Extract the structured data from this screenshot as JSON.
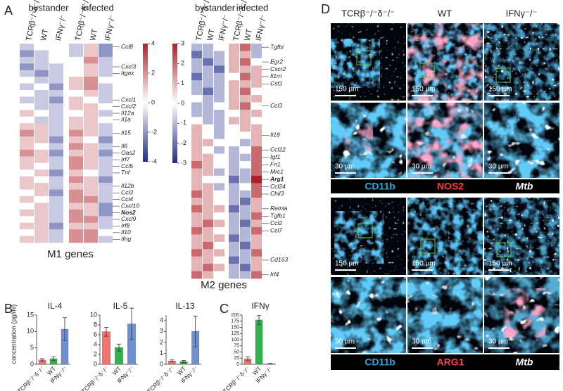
{
  "panel_labels": [
    "A",
    "B",
    "C",
    "D"
  ],
  "panel_a": {
    "group_labels": [
      "bystander",
      "infected"
    ],
    "column_labels": [
      "TCRβ⁻/⁻δ⁻/⁻",
      "WT",
      "IFNγ⁻/⁻"
    ]
  },
  "panel_b": {
    "y_label": "concentration (pg/ml)"
  },
  "panel_d": {
    "column_labels": [
      "TCRβ⁻/⁻δ⁻/⁻",
      "WT",
      "IFNγ⁻/⁻"
    ],
    "scale_bars": [
      "150 µm",
      "30 µm"
    ],
    "stains": [
      [
        "CD11b",
        "NOS2",
        "Mtb"
      ],
      [
        "CD11b",
        "ARG1",
        "Mtb"
      ]
    ]
  },
  "chart_data": [
    {
      "type": "heatmap",
      "title": "M1 genes",
      "colors": [
        "#1f2a8a",
        "#ffffff",
        "#b11f26"
      ],
      "zlim": [
        -4,
        4
      ],
      "zticks": [
        4,
        2,
        0,
        -2,
        -4
      ],
      "bold_rows": [
        25
      ],
      "rows": [
        "Ccl8",
        null,
        null,
        "Cxcl3",
        "Itgax",
        null,
        null,
        null,
        "Cxcl1",
        "Cxcl2",
        "Il12a",
        "Il1a",
        null,
        "Il15",
        null,
        "Il6",
        "Oas2",
        "Irf7",
        "Ccl5",
        "Tnf",
        null,
        "Il12b",
        "Ccl3",
        "Ccl4",
        "Cxcl10",
        "Nos2",
        "Cxcl9",
        "Irf8",
        "Il10",
        "Ifng"
      ],
      "matrix": [
        [
          -1,
          0,
          0,
          -1,
          1,
          -2
        ],
        [
          -2,
          -1,
          0,
          -1,
          1,
          -2
        ],
        [
          -1,
          -1,
          0,
          0,
          2,
          -1
        ],
        [
          -2,
          -1,
          -1,
          0,
          1,
          -1
        ],
        [
          -1,
          -2,
          -1,
          0,
          1,
          -1
        ],
        [
          0,
          -1,
          -1,
          1,
          2,
          0
        ],
        [
          -1,
          0,
          -2,
          1,
          2,
          -1
        ],
        [
          0,
          -1,
          -1,
          0,
          1,
          -1
        ],
        [
          -1,
          -1,
          -2,
          1,
          0,
          -1
        ],
        [
          0,
          -1,
          -1,
          1,
          1,
          0
        ],
        [
          1,
          0,
          -1,
          0,
          1,
          -1
        ],
        [
          0,
          -1,
          -1,
          1,
          1,
          0
        ],
        [
          1,
          1,
          -1,
          1,
          1,
          -1
        ],
        [
          2,
          1,
          -1,
          2,
          1,
          -1
        ],
        [
          1,
          1,
          -2,
          1,
          0,
          -2
        ],
        [
          1,
          0,
          -1,
          2,
          1,
          -1
        ],
        [
          2,
          1,
          -2,
          1,
          1,
          -2
        ],
        [
          1,
          1,
          -1,
          2,
          1,
          -1
        ],
        [
          1,
          0,
          -1,
          2,
          1,
          -1
        ],
        [
          0,
          1,
          -2,
          1,
          0,
          -1
        ],
        [
          1,
          0,
          -1,
          2,
          1,
          -2
        ],
        [
          1,
          1,
          -1,
          1,
          1,
          -1
        ],
        [
          0,
          1,
          -2,
          2,
          1,
          -1
        ],
        [
          1,
          0,
          -1,
          2,
          2,
          -1
        ],
        [
          0,
          1,
          -1,
          1,
          1,
          -2
        ],
        [
          1,
          1,
          -1,
          2,
          1,
          -2
        ],
        [
          0,
          1,
          -1,
          2,
          2,
          -1
        ],
        [
          1,
          1,
          -2,
          1,
          1,
          -1
        ],
        [
          0,
          1,
          -1,
          2,
          2,
          0
        ],
        [
          1,
          1,
          -1,
          2,
          2,
          -1
        ]
      ]
    },
    {
      "type": "heatmap",
      "title": "M2 genes",
      "colors": [
        "#1f2a8a",
        "#ffffff",
        "#b11f26"
      ],
      "zlim": [
        -3,
        3
      ],
      "zticks": [
        3,
        2,
        1,
        0,
        -1,
        -2,
        -3
      ],
      "bold_rows": [
        18
      ],
      "rows": [
        "Tgfbi",
        null,
        "Egr2",
        "Cxcr2",
        "Il1rn",
        "Csf1",
        null,
        null,
        "Ccl3",
        null,
        null,
        null,
        "Il18",
        null,
        "Ccl22",
        "Igf1",
        "Fn1",
        "Mrc1",
        "Arg1",
        "Ccl24",
        "Chil3",
        null,
        "Retnla",
        "Tgfb1",
        "Ccl2",
        "Ccl7",
        null,
        null,
        null,
        "Cd163",
        null,
        "Irf4"
      ],
      "matrix": [
        [
          -1,
          -1,
          0,
          1,
          2,
          -1
        ],
        [
          -2,
          -1,
          -1,
          1,
          1,
          -1
        ],
        [
          -1,
          -2,
          -1,
          1,
          2,
          0
        ],
        [
          -1,
          -1,
          -2,
          1,
          1,
          1
        ],
        [
          -2,
          -1,
          -1,
          0,
          2,
          1
        ],
        [
          -1,
          -1,
          -1,
          1,
          1,
          1
        ],
        [
          -1,
          -2,
          -1,
          1,
          2,
          0
        ],
        [
          0,
          -1,
          -1,
          1,
          1,
          1
        ],
        [
          -1,
          -1,
          0,
          1,
          2,
          0
        ],
        [
          -1,
          -1,
          -1,
          0,
          1,
          1
        ],
        [
          0,
          -1,
          -1,
          1,
          1,
          0
        ],
        [
          1,
          0,
          -1,
          0,
          1,
          1
        ],
        [
          1,
          0,
          -1,
          0,
          0,
          1
        ],
        [
          1,
          1,
          0,
          0,
          -1,
          1
        ],
        [
          1,
          0,
          -1,
          -1,
          0,
          2
        ],
        [
          1,
          1,
          0,
          -1,
          -1,
          2
        ],
        [
          2,
          1,
          0,
          -1,
          0,
          2
        ],
        [
          1,
          1,
          -1,
          -1,
          -1,
          2
        ],
        [
          1,
          0,
          0,
          -2,
          -1,
          3
        ],
        [
          1,
          1,
          -1,
          -1,
          0,
          2
        ],
        [
          2,
          1,
          0,
          -1,
          -1,
          2
        ],
        [
          1,
          1,
          0,
          -1,
          -2,
          1
        ],
        [
          2,
          1,
          1,
          -2,
          -1,
          1
        ],
        [
          1,
          1,
          0,
          -1,
          -1,
          2
        ],
        [
          1,
          2,
          1,
          -1,
          -2,
          1
        ],
        [
          2,
          1,
          0,
          -1,
          -1,
          2
        ],
        [
          1,
          1,
          1,
          -2,
          -1,
          1
        ],
        [
          1,
          2,
          0,
          -1,
          -2,
          1
        ],
        [
          2,
          1,
          1,
          -1,
          -1,
          2
        ],
        [
          1,
          1,
          0,
          -2,
          -1,
          1
        ],
        [
          1,
          2,
          1,
          -1,
          -2,
          1
        ],
        [
          2,
          1,
          0,
          -1,
          -1,
          2
        ]
      ]
    },
    {
      "type": "bar",
      "title": "IL-4",
      "categories": [
        "TCRβ⁻/⁻δ⁻/⁻",
        "WT",
        "IFNγ⁻/⁻"
      ],
      "values": [
        1.3,
        1.7,
        10.7
      ],
      "errors": [
        0.4,
        0.6,
        3.5
      ],
      "colors": [
        "#f4736f",
        "#2fb34b",
        "#6f8fd3"
      ],
      "ylim": [
        0,
        15
      ],
      "yticks": [
        0,
        5,
        10,
        15
      ]
    },
    {
      "type": "bar",
      "title": "IL-5",
      "categories": [
        "TCRβ⁻/⁻δ⁻/⁻",
        "WT",
        "IFNγ⁻/⁻"
      ],
      "values": [
        6.6,
        3.4,
        8.2
      ],
      "errors": [
        0.9,
        0.7,
        3.2
      ],
      "colors": [
        "#f4736f",
        "#2fb34b",
        "#6f8fd3"
      ],
      "ylim": [
        0,
        10
      ],
      "yticks": [
        0,
        2,
        4,
        6,
        8,
        10
      ]
    },
    {
      "type": "bar",
      "title": "IL-13",
      "categories": [
        "TCRβ⁻/⁻δ⁻/⁻",
        "WT",
        "IFNγ⁻/⁻"
      ],
      "values": [
        0.3,
        0.25,
        3.0
      ],
      "errors": [
        0.1,
        0.1,
        1.4
      ],
      "colors": [
        "#f4736f",
        "#2fb34b",
        "#6f8fd3"
      ],
      "ylim": [
        0,
        4.5
      ],
      "yticks": [
        0,
        1,
        2,
        3,
        4
      ]
    },
    {
      "type": "bar",
      "title": "IFNγ",
      "categories": [
        "TCRβ⁻/⁻δ⁻/⁻",
        "WT",
        "IFNγ⁻/⁻"
      ],
      "values": [
        22,
        180,
        2
      ],
      "errors": [
        8,
        18,
        1
      ],
      "colors": [
        "#f4736f",
        "#2fb34b",
        "#6f8fd3"
      ],
      "ylim": [
        0,
        200
      ],
      "yticks": [
        0,
        25,
        50,
        75,
        100,
        125,
        150,
        175,
        200
      ]
    }
  ]
}
